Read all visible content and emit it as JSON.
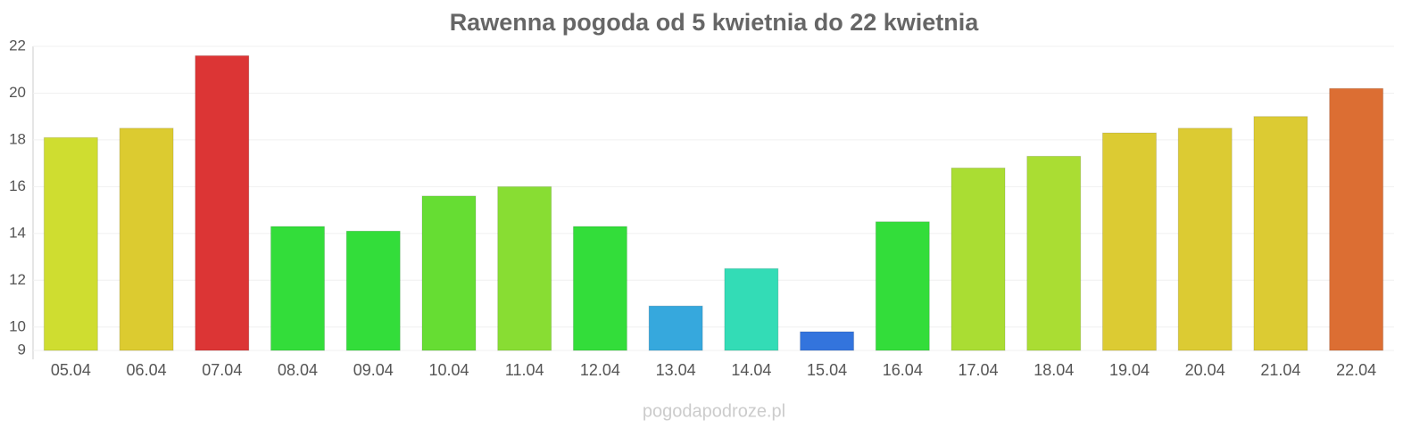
{
  "chart_data": {
    "type": "bar",
    "title": "Rawenna pogoda od 5 kwietnia do 22 kwietnia",
    "categories": [
      "05.04",
      "06.04",
      "07.04",
      "08.04",
      "09.04",
      "10.04",
      "11.04",
      "12.04",
      "13.04",
      "14.04",
      "15.04",
      "16.04",
      "17.04",
      "18.04",
      "19.04",
      "20.04",
      "21.04",
      "22.04"
    ],
    "values": [
      18.1,
      18.5,
      21.6,
      14.3,
      14.1,
      15.6,
      16.0,
      14.3,
      10.9,
      12.5,
      9.8,
      14.5,
      16.8,
      17.3,
      18.3,
      18.5,
      19.0,
      20.2
    ],
    "colors": [
      "#cfdd30",
      "#dccb30",
      "#dc3535",
      "#33dd3a",
      "#33dd3a",
      "#66dd33",
      "#88dd33",
      "#33dd3a",
      "#36a8dd",
      "#33dcb6",
      "#3374dd",
      "#33dd3a",
      "#aadd33",
      "#aadd33",
      "#dccb33",
      "#dccb33",
      "#dccb33",
      "#dc6e33"
    ],
    "ylim": [
      9,
      22
    ],
    "yticks": [
      9,
      10,
      12,
      14,
      16,
      18,
      20,
      22
    ],
    "grid": true,
    "source": "pogodapodroze.pl"
  }
}
